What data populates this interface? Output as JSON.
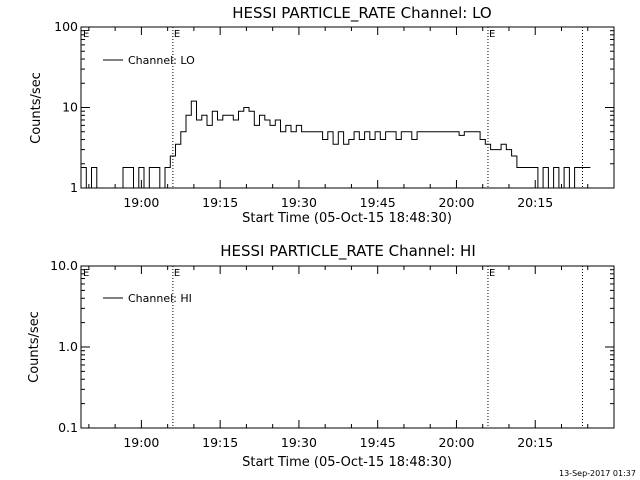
{
  "chart_data": [
    {
      "type": "line",
      "title": "HESSI PARTICLE_RATE Channel: LO",
      "xlabel": "Start Time (05-Oct-15 18:48:30)",
      "ylabel": "Counts/sec",
      "x_ticks": [
        "19:00",
        "19:15",
        "19:30",
        "19:45",
        "20:00",
        "20:15"
      ],
      "y_ticks": [
        "1",
        "10",
        "100"
      ],
      "ylim": [
        1,
        100
      ],
      "y_scale": "log",
      "legend": "top-left",
      "legend_label": "Channel: LO",
      "markers": [
        {
          "time": "19:06",
          "label": "E"
        },
        {
          "time": "20:06",
          "label": "E"
        },
        {
          "time": "20:24",
          "label": ""
        }
      ],
      "series": [
        {
          "name": "Channel: LO",
          "x": [
            "18:49",
            "18:50",
            "18:51",
            "18:52",
            "18:53",
            "18:54",
            "18:55",
            "18:56",
            "18:57",
            "18:58",
            "18:59",
            "19:00",
            "19:01",
            "19:02",
            "19:03",
            "19:04",
            "19:05",
            "19:06",
            "19:07",
            "19:08",
            "19:09",
            "19:10",
            "19:11",
            "19:12",
            "19:13",
            "19:14",
            "19:15",
            "19:16",
            "19:17",
            "19:18",
            "19:19",
            "19:20",
            "19:21",
            "19:22",
            "19:23",
            "19:24",
            "19:25",
            "19:26",
            "19:27",
            "19:28",
            "19:29",
            "19:30",
            "19:31",
            "19:32",
            "19:33",
            "19:34",
            "19:35",
            "19:36",
            "19:37",
            "19:38",
            "19:39",
            "19:40",
            "19:41",
            "19:42",
            "19:43",
            "19:44",
            "19:45",
            "19:46",
            "19:47",
            "19:48",
            "19:49",
            "19:50",
            "19:51",
            "19:52",
            "19:53",
            "19:54",
            "19:55",
            "19:56",
            "19:57",
            "19:58",
            "19:59",
            "20:00",
            "20:01",
            "20:02",
            "20:03",
            "20:04",
            "20:05",
            "20:06",
            "20:07",
            "20:08",
            "20:09",
            "20:10",
            "20:11",
            "20:12",
            "20:13",
            "20:14",
            "20:15",
            "20:16",
            "20:17",
            "20:18",
            "20:19",
            "20:20",
            "20:21",
            "20:22",
            "20:23",
            "20:24",
            "20:25"
          ],
          "values": [
            1.8,
            1,
            1.8,
            1,
            1,
            1,
            1,
            1,
            1.8,
            1.8,
            1,
            1.8,
            1,
            1.8,
            1.8,
            1,
            1.8,
            2.5,
            3.5,
            5,
            8,
            12,
            7,
            8,
            6,
            9,
            7,
            8,
            8,
            7,
            9,
            10,
            9,
            6,
            8,
            7,
            6,
            7,
            5,
            6,
            5,
            6,
            5,
            5,
            5,
            5,
            4,
            5,
            3.5,
            5,
            3.5,
            4,
            5,
            4,
            5,
            4,
            5,
            4,
            5,
            5,
            4,
            5,
            5,
            4,
            5,
            5,
            5,
            5,
            5,
            5,
            5,
            5,
            4.5,
            5,
            5,
            5,
            4,
            3.5,
            3,
            3,
            3.5,
            3,
            2.5,
            1.8,
            1.8,
            1.8,
            1.8,
            1,
            1.8,
            1,
            1.8,
            1,
            1.8,
            1,
            1.8,
            1.8,
            1.8
          ]
        }
      ]
    },
    {
      "type": "line",
      "title": "HESSI PARTICLE_RATE Channel: HI",
      "xlabel": "Start Time (05-Oct-15 18:48:30)",
      "ylabel": "Counts/sec",
      "x_ticks": [
        "19:00",
        "19:15",
        "19:30",
        "19:45",
        "20:00",
        "20:15"
      ],
      "y_ticks": [
        "0.1",
        "1.0",
        "10.0"
      ],
      "ylim": [
        0.1,
        10
      ],
      "y_scale": "log",
      "legend": "top-left",
      "legend_label": "Channel: HI",
      "markers": [
        {
          "time": "19:06",
          "label": "E"
        },
        {
          "time": "20:06",
          "label": "E"
        },
        {
          "time": "20:24",
          "label": ""
        }
      ],
      "series": [
        {
          "name": "Channel: HI",
          "x": [],
          "values": []
        }
      ]
    }
  ],
  "footer": {
    "timestamp": "13-Sep-2017 01:37"
  }
}
